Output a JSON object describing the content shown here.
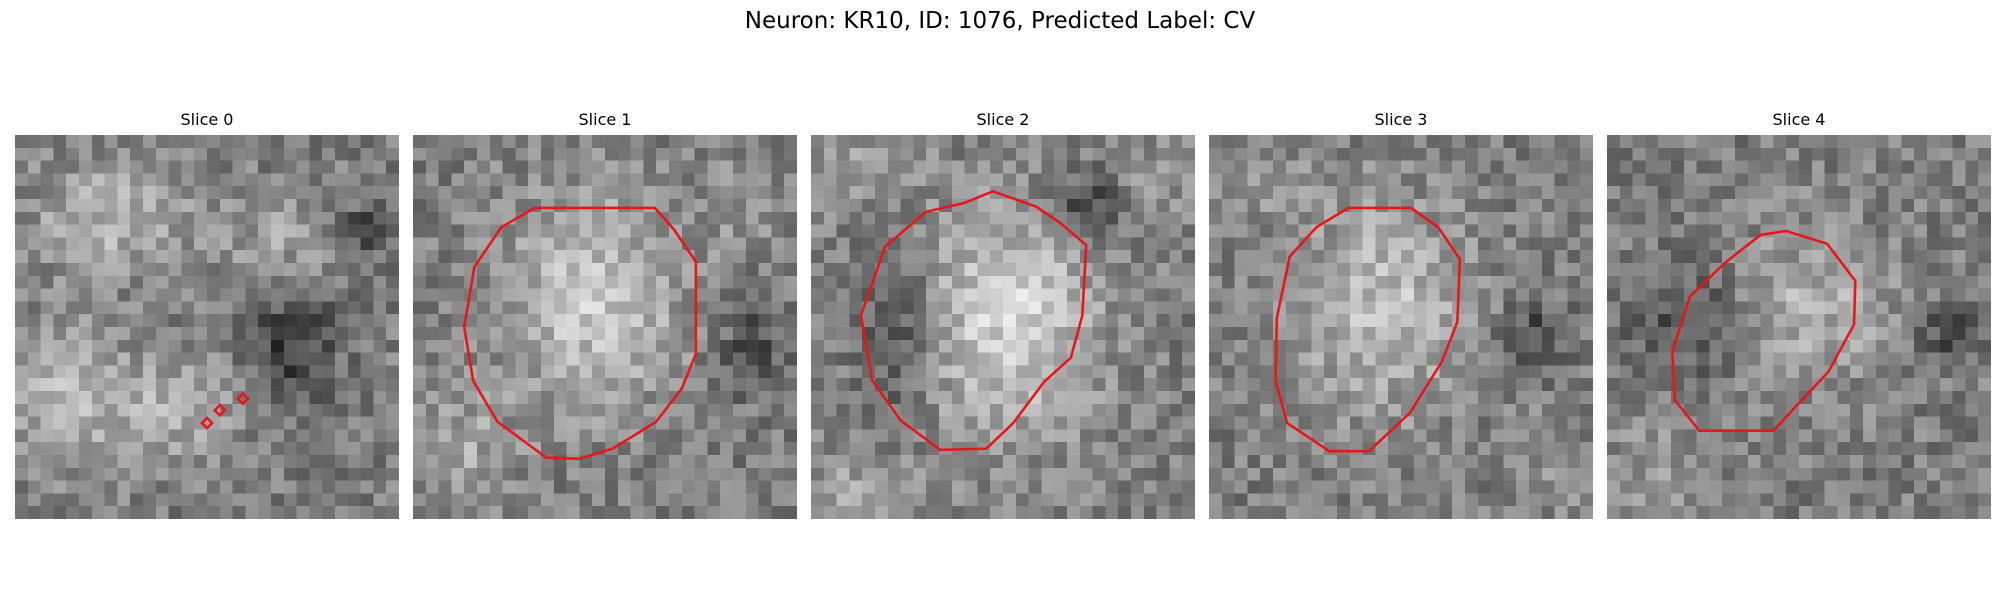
{
  "figure": {
    "title": "Neuron: KR10, ID: 1076, Predicted Label: CV"
  },
  "panels": [
    {
      "title": "Slice 0",
      "seed": 11,
      "contour_color": "#e8151b",
      "contour": "small-diamonds"
    },
    {
      "title": "Slice 1",
      "seed": 23,
      "contour_color": "#e8151b",
      "contour": "outline"
    },
    {
      "title": "Slice 2",
      "seed": 37,
      "contour_color": "#e8151b",
      "contour": "outline"
    },
    {
      "title": "Slice 3",
      "seed": 53,
      "contour_color": "#e8151b",
      "contour": "outline"
    },
    {
      "title": "Slice 4",
      "seed": 71,
      "contour_color": "#e8151b",
      "contour": "outline"
    }
  ]
}
